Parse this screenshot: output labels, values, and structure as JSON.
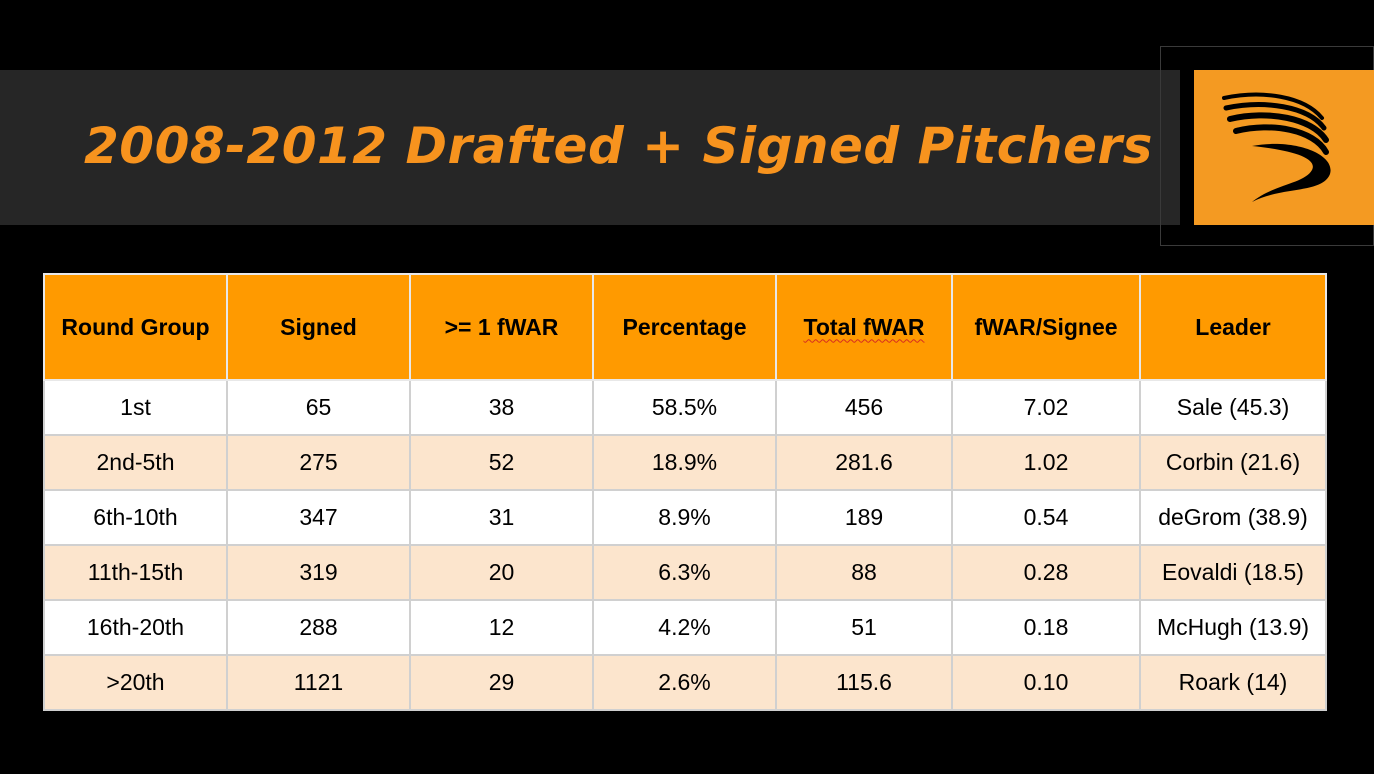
{
  "title": "2008-2012 Drafted + Signed Pitchers",
  "logo": {
    "icon": "swoosh-logo-icon",
    "background_color": "#F49A22"
  },
  "colors": {
    "accent": "#F7931E",
    "header_fill": "#FF9A00",
    "band_fill": "#262626",
    "alt_row_fill": "#FCE5CD"
  },
  "table": {
    "headers": [
      "Round Group",
      "Signed",
      ">= 1 fWAR",
      "Percentage",
      "Total fWAR",
      "fWAR/Signee",
      "Leader"
    ],
    "rows": [
      [
        "1st",
        "65",
        "38",
        "58.5%",
        "456",
        "7.02",
        "Sale (45.3)"
      ],
      [
        "2nd-5th",
        "275",
        "52",
        "18.9%",
        "281.6",
        "1.02",
        "Corbin (21.6)"
      ],
      [
        "6th-10th",
        "347",
        "31",
        "8.9%",
        "189",
        "0.54",
        "deGrom (38.9)"
      ],
      [
        "11th-15th",
        "319",
        "20",
        "6.3%",
        "88",
        "0.28",
        "Eovaldi (18.5)"
      ],
      [
        "16th-20th",
        "288",
        "12",
        "4.2%",
        "51",
        "0.18",
        "McHugh (13.9)"
      ],
      [
        ">20th",
        "1121",
        "29",
        "2.6%",
        "115.6",
        "0.10",
        "Roark (14)"
      ]
    ]
  }
}
